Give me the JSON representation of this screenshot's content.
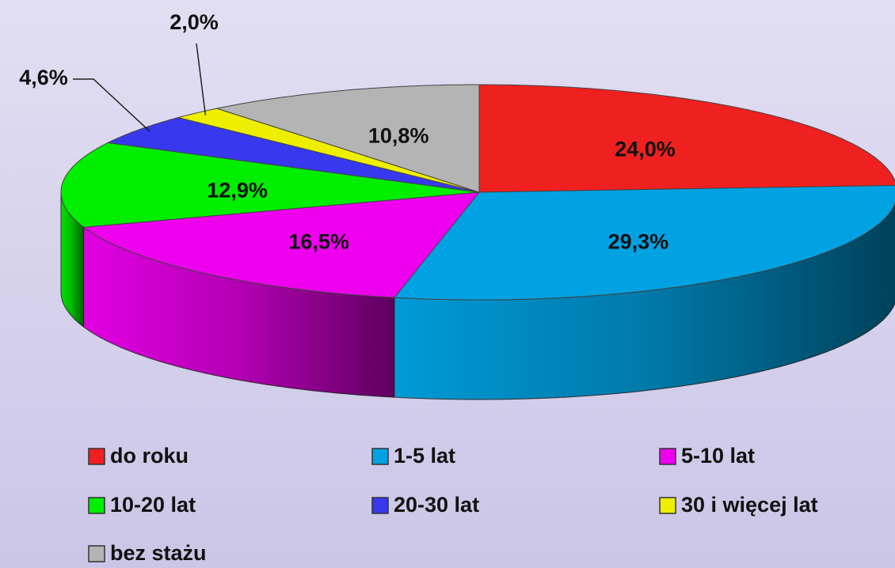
{
  "chart_data": {
    "type": "pie",
    "categories": [
      "do roku",
      "1-5 lat",
      "5-10 lat",
      "10-20 lat",
      "20-30 lat",
      "30 i więcej lat",
      "bez stażu"
    ],
    "values": [
      24.0,
      29.3,
      16.5,
      12.9,
      4.6,
      2.0,
      10.8
    ],
    "value_labels": [
      "24,0%",
      "29,3%",
      "16,5%",
      "12,9%",
      "4,6%",
      "2,0%",
      "10,8%"
    ],
    "colors": [
      "#ee2020",
      "#00a2e2",
      "#ee00ee",
      "#00ee00",
      "#3838ee",
      "#eeee00",
      "#b4b4b4"
    ],
    "legend": "bottom"
  }
}
